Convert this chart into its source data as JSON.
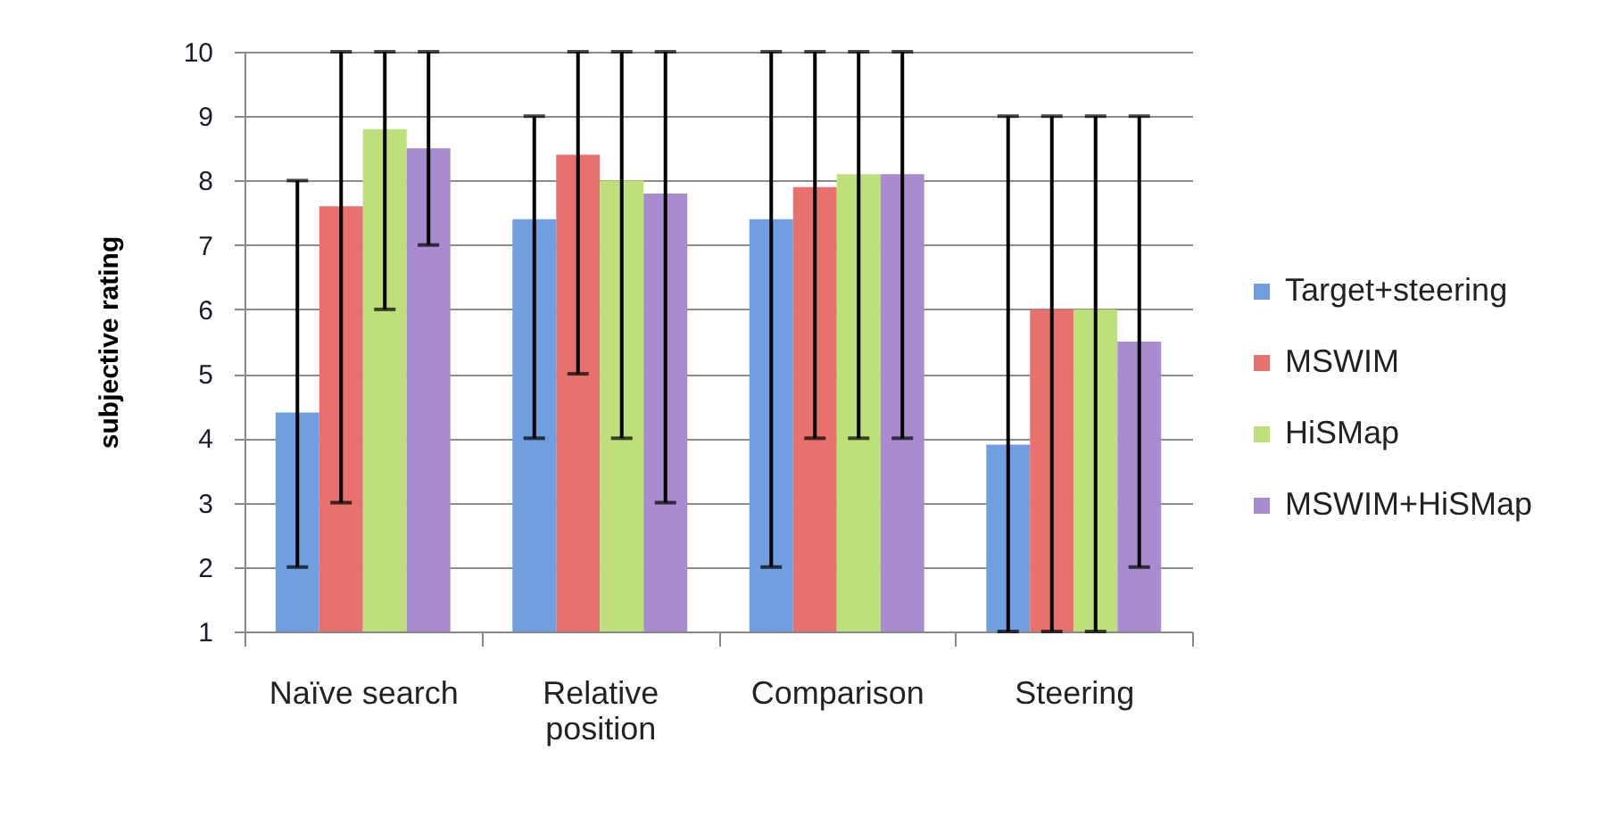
{
  "chart_data": {
    "type": "bar",
    "ylabel": "subjective rating",
    "categories": [
      "Naïve search",
      "Relative position",
      "Comparison",
      "Steering"
    ],
    "series": [
      {
        "name": "Target+steering",
        "color": "#6f9fe0",
        "values": [
          4.4,
          7.4,
          7.4,
          3.9
        ],
        "errors": [
          [
            2,
            8
          ],
          [
            4,
            9
          ],
          [
            2,
            10
          ],
          [
            1,
            9
          ]
        ]
      },
      {
        "name": "MSWIM",
        "color": "#e8716d",
        "values": [
          7.6,
          8.4,
          7.9,
          6.0
        ],
        "errors": [
          [
            3,
            10
          ],
          [
            5,
            10
          ],
          [
            4,
            10
          ],
          [
            1,
            9
          ]
        ]
      },
      {
        "name": "HiSMap",
        "color": "#bde07a",
        "values": [
          8.8,
          8.0,
          8.1,
          6.0
        ],
        "errors": [
          [
            6,
            10
          ],
          [
            4,
            10
          ],
          [
            4,
            10
          ],
          [
            1,
            9
          ]
        ]
      },
      {
        "name": "MSWIM+HiSMap",
        "color": "#a98ccf",
        "values": [
          8.5,
          7.8,
          8.1,
          5.5
        ],
        "errors": [
          [
            7,
            10
          ],
          [
            3,
            10
          ],
          [
            4,
            10
          ],
          [
            2,
            9
          ]
        ]
      }
    ],
    "ylim": [
      1,
      10
    ],
    "yticks": [
      1,
      2,
      3,
      4,
      5,
      6,
      7,
      8,
      9,
      10
    ],
    "grid": "y",
    "legend": "right"
  }
}
